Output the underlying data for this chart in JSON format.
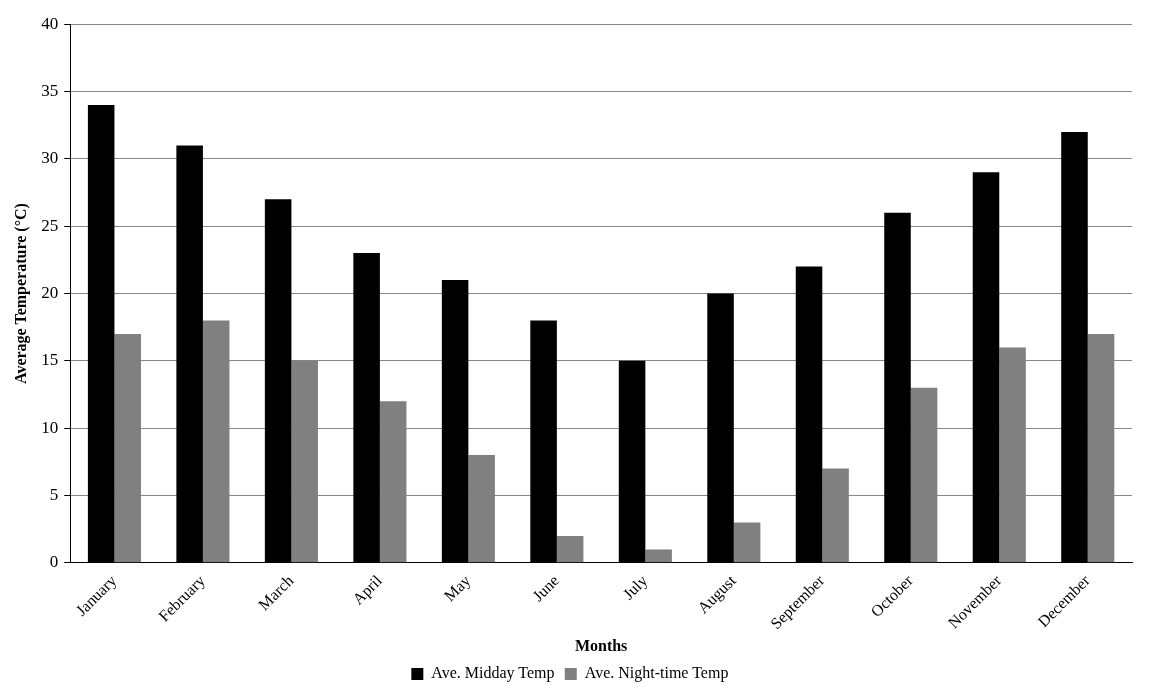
{
  "chart_data": {
    "type": "bar",
    "xlabel": "Months",
    "ylabel": "Average Temperature (°C)",
    "categories": [
      "January",
      "February",
      "March",
      "April",
      "May",
      "June",
      "July",
      "August",
      "September",
      "October",
      "November",
      "December"
    ],
    "series": [
      {
        "name": "Ave. Midday Temp",
        "color": "#000000",
        "values": [
          34,
          31,
          27,
          23,
          21,
          18,
          15,
          20,
          22,
          26,
          29,
          32
        ]
      },
      {
        "name": "Ave. Night-time Temp",
        "color": "#808080",
        "values": [
          17,
          18,
          15,
          12,
          8,
          2,
          1,
          3,
          7,
          13,
          16,
          17
        ]
      }
    ],
    "ylim": [
      0,
      40
    ],
    "yticks": [
      0,
      5,
      10,
      15,
      20,
      25,
      30,
      35,
      40
    ],
    "grid": "y",
    "legend": "bottom"
  }
}
